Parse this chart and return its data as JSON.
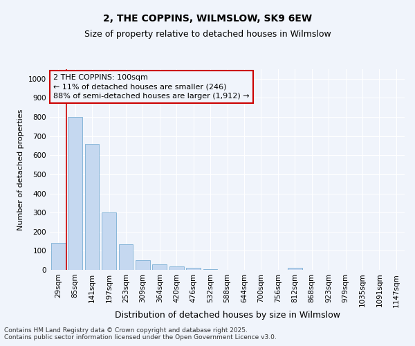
{
  "title1": "2, THE COPPINS, WILMSLOW, SK9 6EW",
  "title2": "Size of property relative to detached houses in Wilmslow",
  "xlabel": "Distribution of detached houses by size in Wilmslow",
  "ylabel": "Number of detached properties",
  "categories": [
    "29sqm",
    "85sqm",
    "141sqm",
    "197sqm",
    "253sqm",
    "309sqm",
    "364sqm",
    "420sqm",
    "476sqm",
    "532sqm",
    "588sqm",
    "644sqm",
    "700sqm",
    "756sqm",
    "812sqm",
    "868sqm",
    "923sqm",
    "979sqm",
    "1035sqm",
    "1091sqm",
    "1147sqm"
  ],
  "values": [
    140,
    800,
    660,
    300,
    135,
    52,
    30,
    17,
    10,
    5,
    0,
    0,
    0,
    0,
    10,
    0,
    0,
    0,
    0,
    0,
    0
  ],
  "bar_color": "#c5d8f0",
  "bar_edge_color": "#7bafd4",
  "vline_x": 0.5,
  "vline_color": "#cc0000",
  "annotation_text": "2 THE COPPINS: 100sqm\n← 11% of detached houses are smaller (246)\n88% of semi-detached houses are larger (1,912) →",
  "annotation_box_color": "#cc0000",
  "ylim": [
    0,
    1050
  ],
  "yticks": [
    0,
    100,
    200,
    300,
    400,
    500,
    600,
    700,
    800,
    900,
    1000
  ],
  "background_color": "#f0f4fb",
  "footer_text": "Contains HM Land Registry data © Crown copyright and database right 2025.\nContains public sector information licensed under the Open Government Licence v3.0.",
  "title1_fontsize": 10,
  "title2_fontsize": 9,
  "xlabel_fontsize": 9,
  "ylabel_fontsize": 8,
  "tick_fontsize": 7.5,
  "annotation_fontsize": 8,
  "footer_fontsize": 6.5
}
